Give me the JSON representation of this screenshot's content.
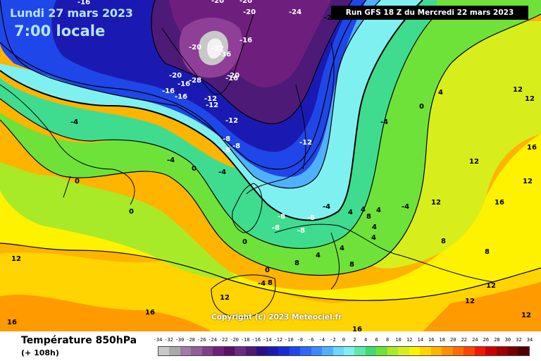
{
  "header": {
    "date": "Lundi 27 mars 2023",
    "time": "7:00 locale",
    "run": "Run GFS 18 Z du Mercredi 22 mars 2023"
  },
  "footer": {
    "param": "Température 850hPa",
    "lead": "(+ 108h)",
    "copyright": "Copyright (c) 2023 Meteociel.fr"
  },
  "legend": {
    "ticks": [
      "-34",
      "-32",
      "-30",
      "-28",
      "-26",
      "-24",
      "-22",
      "-20",
      "-18",
      "-16",
      "-14",
      "-12",
      "-10",
      "-8",
      "-6",
      "-4",
      "-2",
      "0",
      "2",
      "4",
      "6",
      "8",
      "10",
      "12",
      "14",
      "16",
      "18",
      "20",
      "22",
      "24",
      "26",
      "28",
      "30",
      "32",
      "34"
    ],
    "colors": [
      "#c8c8c8",
      "#a9a9a9",
      "#a07ca6",
      "#8f5f98",
      "#7e3f8b",
      "#6e1f7d",
      "#5a1068",
      "#6a2a86",
      "#4e1a78",
      "#2a0f88",
      "#1a1ab2",
      "#1a2ad6",
      "#1f46e8",
      "#2f66f4",
      "#3f88fa",
      "#4fb0fc",
      "#6fd6fd",
      "#7ff0f0",
      "#5fe8a8",
      "#3fdc70",
      "#6fe23a",
      "#a8ea28",
      "#d7ee1c",
      "#fff200",
      "#ffd400",
      "#ffb400",
      "#ff9000",
      "#ff6c00",
      "#ff4400",
      "#f01800",
      "#cc0000",
      "#a00000",
      "#780000",
      "#500000"
    ]
  },
  "labels": [
    "-16",
    "-20",
    "-20",
    "-24",
    "-2",
    "-20",
    "-16",
    "-20",
    "-16",
    "-20",
    "-16",
    "-16",
    "-32",
    "-36",
    "-28",
    "-20",
    "-12",
    "-16",
    "-12",
    "-12",
    "-8",
    "-8",
    "-8",
    "-12",
    "-4",
    "-4",
    "0",
    "4",
    "12",
    "12",
    "16",
    "12",
    "16",
    "12",
    "-4",
    "0",
    "0",
    "-4",
    "0",
    "4",
    "8",
    "4",
    "4",
    "8",
    "8",
    "12",
    "12",
    "16",
    "16",
    "16",
    "0",
    "8",
    "-8",
    "-8",
    "-4",
    "4",
    "4",
    "8",
    "12",
    "12",
    "12",
    "12",
    "-8",
    "0",
    "-4",
    "4",
    "4",
    "-4",
    "8",
    "-8"
  ]
}
